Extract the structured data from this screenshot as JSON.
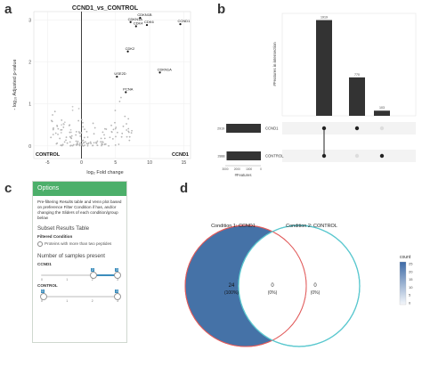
{
  "panels": {
    "a": "a",
    "b": "b",
    "c": "c",
    "d": "d"
  },
  "volcano": {
    "title": "CCND1_vs_CONTROL",
    "xlabel": "log₂ Fold change",
    "ylabel": "- log₁₀ Adjusted p-value",
    "x_ticks": [
      "-5",
      "0",
      "5",
      "10",
      "15"
    ],
    "y_ticks": [
      "0",
      "1",
      "2",
      "3"
    ],
    "corner_left": "CONTROL",
    "corner_right": "CCND1",
    "point_labels": [
      {
        "text": "CDKN1B",
        "x": 8.6,
        "y": 3.05
      },
      {
        "text": "CDKN1A",
        "x": 7.2,
        "y": 2.95
      },
      {
        "text": "CDK4",
        "x": 8.0,
        "y": 2.85
      },
      {
        "text": "CDK6",
        "x": 9.6,
        "y": 2.88
      },
      {
        "text": "CCND1",
        "x": 14.5,
        "y": 2.9
      },
      {
        "text": "CDK2",
        "x": 6.8,
        "y": 2.25
      },
      {
        "text": "CDKN1A",
        "x": 11.5,
        "y": 1.75
      },
      {
        "text": "USE2D",
        "x": 5.2,
        "y": 1.65
      },
      {
        "text": "PCNA",
        "x": 6.5,
        "y": 1.28
      }
    ]
  },
  "upset": {
    "ylabel": "#Features in intersection",
    "bar_values": [
      "1919",
      "770",
      "103"
    ],
    "set_sizes": [
      "2919",
      "2888"
    ],
    "set_names": [
      "CCND1",
      "CONTROL"
    ],
    "set_axis_ticks": [
      "3000",
      "2000",
      "1000",
      "0"
    ],
    "set_axis_label": "#Features"
  },
  "options": {
    "header": "Options",
    "description": "Pre-filtering Results table and Venn plot based on preference Filter Condition if has, and/or changing the Sliders of each condition/group below",
    "subset_title": "Subset Results Table",
    "filtered_label": "Filtered Condition",
    "radio_label": "Proteins with more than two peptides",
    "samples_title": "Number of samples present",
    "conditions": [
      {
        "name": "CCND1",
        "low": "2",
        "high": "3",
        "ticks": [
          "0",
          "1",
          "2",
          "3"
        ]
      },
      {
        "name": "CONTROL",
        "low": "0",
        "high": "3",
        "ticks": [
          "0",
          "1",
          "2",
          "3"
        ]
      }
    ],
    "corner_marks": [
      "0",
      "3"
    ]
  },
  "venn": {
    "cond1_label": "Condition 1: CCND1",
    "cond2_label": "Condition 2: CONTROL",
    "left_value": "24",
    "left_pct": "(100%)",
    "mid_value": "0",
    "mid_pct": "(0%)",
    "right_value": "0",
    "right_pct": "(0%)",
    "legend_title": "count",
    "legend_ticks": [
      "25",
      "20",
      "15",
      "10",
      "5",
      "0"
    ],
    "colors": {
      "left": "#4572a7",
      "right_stroke": "#5bc8cf",
      "left_stroke": "#e15b5b"
    }
  }
}
